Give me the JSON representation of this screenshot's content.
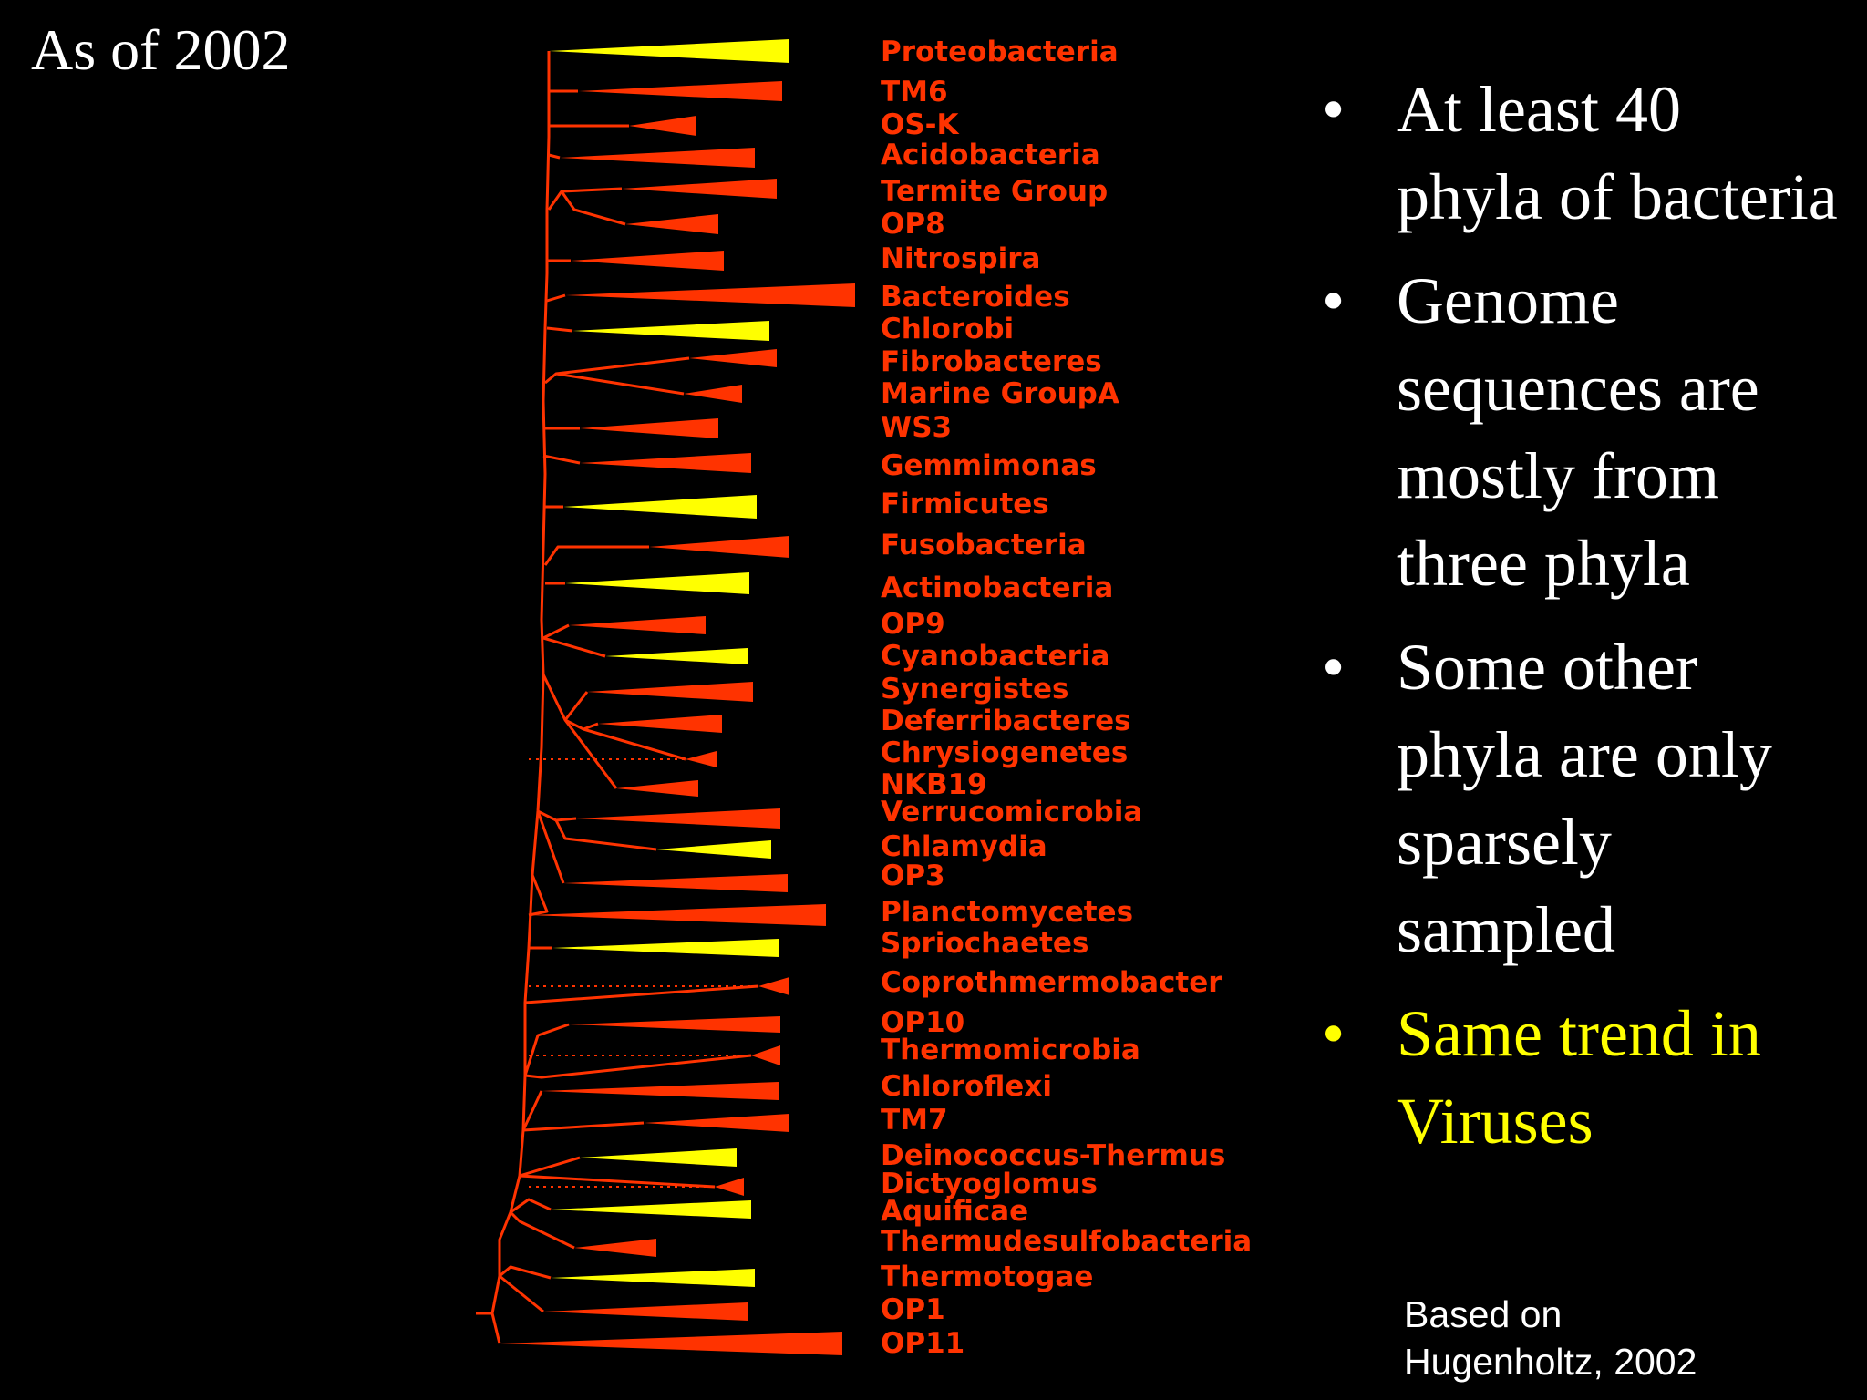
{
  "title": "As of 2002",
  "colors": {
    "background": "#000000",
    "branch": "#ff3300",
    "wedge_red": "#ff3300",
    "wedge_yellow": "#ffff00",
    "text": "#ffffff",
    "highlight": "#ffff00"
  },
  "tree": {
    "description_note": "",
    "phyla": [
      {
        "name": "Proteobacteria",
        "color": "yellow",
        "dotted": false
      },
      {
        "name": "TM6",
        "color": "red",
        "dotted": false
      },
      {
        "name": "OS-K",
        "color": "red",
        "dotted": false
      },
      {
        "name": "Acidobacteria",
        "color": "red",
        "dotted": false
      },
      {
        "name": "Termite Group",
        "color": "red",
        "dotted": false
      },
      {
        "name": "OP8",
        "color": "red",
        "dotted": false
      },
      {
        "name": "Nitrospira",
        "color": "red",
        "dotted": false
      },
      {
        "name": "Bacteroides",
        "color": "red",
        "dotted": false
      },
      {
        "name": "Chlorobi",
        "color": "yellow",
        "dotted": false
      },
      {
        "name": "Fibrobacteres",
        "color": "red",
        "dotted": false
      },
      {
        "name": "Marine GroupA",
        "color": "red",
        "dotted": false
      },
      {
        "name": "WS3",
        "color": "red",
        "dotted": false
      },
      {
        "name": "Gemmimonas",
        "color": "red",
        "dotted": false
      },
      {
        "name": "Firmicutes",
        "color": "yellow",
        "dotted": false
      },
      {
        "name": "Fusobacteria",
        "color": "red",
        "dotted": false
      },
      {
        "name": "Actinobacteria",
        "color": "yellow",
        "dotted": false
      },
      {
        "name": "OP9",
        "color": "red",
        "dotted": false
      },
      {
        "name": "Cyanobacteria",
        "color": "yellow",
        "dotted": false
      },
      {
        "name": "Synergistes",
        "color": "red",
        "dotted": false
      },
      {
        "name": "Deferribacteres",
        "color": "red",
        "dotted": false
      },
      {
        "name": "Chrysiogenetes",
        "color": "red",
        "dotted": true
      },
      {
        "name": "NKB19",
        "color": "red",
        "dotted": false
      },
      {
        "name": "Verrucomicrobia",
        "color": "red",
        "dotted": false
      },
      {
        "name": "Chlamydia",
        "color": "yellow",
        "dotted": false
      },
      {
        "name": "OP3",
        "color": "red",
        "dotted": false
      },
      {
        "name": "Planctomycetes",
        "color": "red",
        "dotted": false
      },
      {
        "name": "Spriochaetes",
        "color": "yellow",
        "dotted": false
      },
      {
        "name": "Coprothmermobacter",
        "color": "red",
        "dotted": true
      },
      {
        "name": "OP10",
        "color": "red",
        "dotted": false
      },
      {
        "name": "Thermomicrobia",
        "color": "red",
        "dotted": true
      },
      {
        "name": "Chloroflexi",
        "color": "red",
        "dotted": false
      },
      {
        "name": "TM7",
        "color": "red",
        "dotted": false
      },
      {
        "name": "Deinococcus-Thermus",
        "color": "yellow",
        "dotted": false
      },
      {
        "name": "Dictyoglomus",
        "color": "red",
        "dotted": true
      },
      {
        "name": "Aquificae",
        "color": "yellow",
        "dotted": false
      },
      {
        "name": "Thermudesulfobacteria",
        "color": "red",
        "dotted": false
      },
      {
        "name": "Thermotogae",
        "color": "yellow",
        "dotted": false
      },
      {
        "name": "OP1",
        "color": "red",
        "dotted": false
      },
      {
        "name": "OP11",
        "color": "red",
        "dotted": false
      }
    ]
  },
  "bullets": [
    {
      "text": "At least 40 phyla of bacteria",
      "highlight": false
    },
    {
      "text": "Genome sequences are mostly from three phyla",
      "highlight": false
    },
    {
      "text": "Some other phyla are only sparsely sampled",
      "highlight": false
    },
    {
      "text": "Same trend in Viruses",
      "highlight": true
    }
  ],
  "bullet_glyph": "•",
  "credit": "Based on\nHugenholtz, 2002"
}
